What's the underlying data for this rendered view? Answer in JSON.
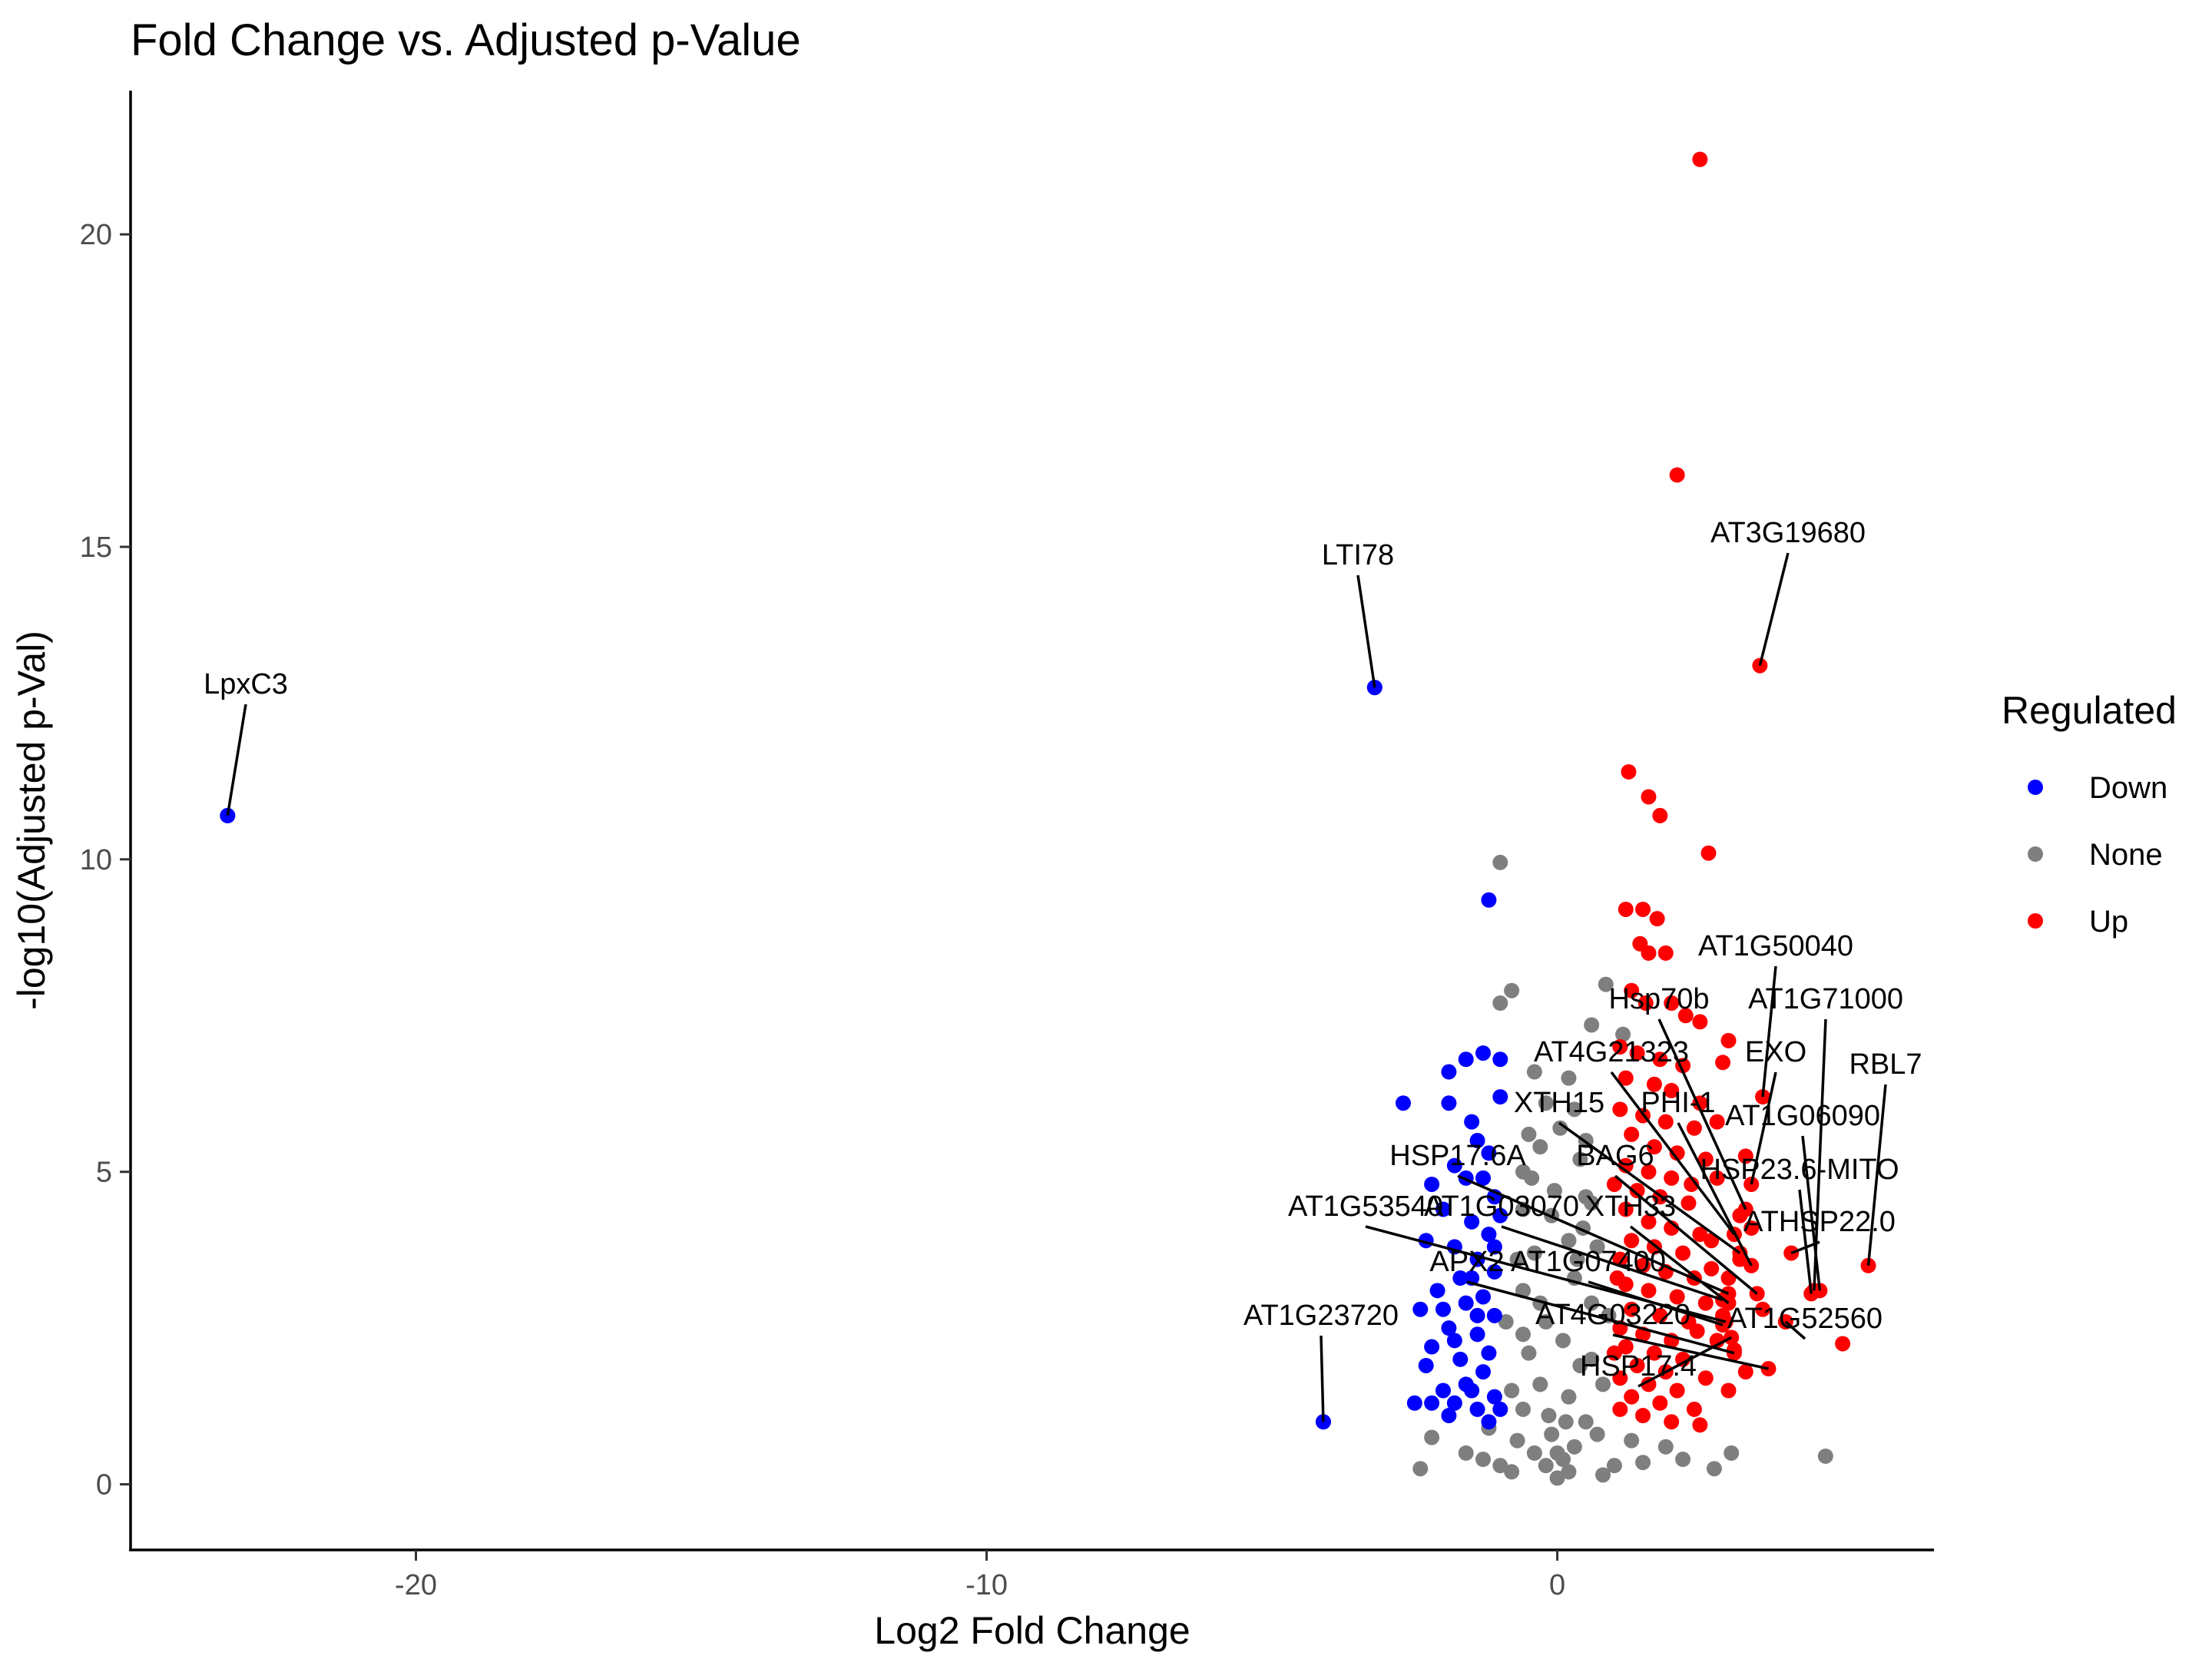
{
  "chart_data": {
    "type": "scatter",
    "title": "Fold Change vs. Adjusted p-Value",
    "xlabel": "Log2 Fold Change",
    "ylabel": "-log10(Adjusted p-Val)",
    "xlim": [
      -25.0,
      6.6
    ],
    "ylim": [
      -1.05,
      22.3
    ],
    "xticks": [
      -20,
      -10,
      0
    ],
    "yticks": [
      0,
      5,
      10,
      15,
      20
    ],
    "grid": false,
    "legend": {
      "title": "Regulated",
      "position": "right",
      "entries": [
        {
          "name": "Down",
          "color": "#0000ff"
        },
        {
          "name": "None",
          "color": "#7f7f7f"
        },
        {
          "name": "Up",
          "color": "#ff0000"
        }
      ]
    },
    "labeled_points": [
      {
        "label": "LpxC3",
        "x": -23.3,
        "y": 10.7,
        "group": "Down"
      },
      {
        "label": "LTI78",
        "x": -3.2,
        "y": 12.75,
        "group": "Down"
      },
      {
        "label": "AT1G23720",
        "x": -4.1,
        "y": 1.0,
        "group": "Down"
      },
      {
        "label": "AT3G19680",
        "x": 3.55,
        "y": 13.1,
        "group": "Up"
      },
      {
        "label": "AT1G50040",
        "x": 3.6,
        "y": 6.2,
        "group": "Up"
      },
      {
        "label": "AT1G71000",
        "x": 4.5,
        "y": 3.1,
        "group": "Up"
      },
      {
        "label": "Hsp70b",
        "x": 3.3,
        "y": 4.4,
        "group": "Up"
      },
      {
        "label": "EXO",
        "x": 3.4,
        "y": 4.8,
        "group": "Up"
      },
      {
        "label": "RBL7",
        "x": 5.45,
        "y": 3.5,
        "group": "Up"
      },
      {
        "label": "AT4G21323",
        "x": 3.1,
        "y": 4.0,
        "group": "Up"
      },
      {
        "label": "AT1G06090",
        "x": 4.6,
        "y": 3.1,
        "group": "Up"
      },
      {
        "label": "XTH15",
        "x": 3.2,
        "y": 3.7,
        "group": "Up"
      },
      {
        "label": "PHI-1",
        "x": 3.4,
        "y": 3.5,
        "group": "Up"
      },
      {
        "label": "HSP17.6A",
        "x": 3.0,
        "y": 3.05,
        "group": "Up"
      },
      {
        "label": "BAG6",
        "x": 3.5,
        "y": 3.05,
        "group": "Up"
      },
      {
        "label": "HSP23.6-MITO",
        "x": 4.45,
        "y": 3.05,
        "group": "Up"
      },
      {
        "label": "AT1G53540",
        "x": 2.95,
        "y": 2.6,
        "group": "Up"
      },
      {
        "label": "AT1G03070",
        "x": 2.9,
        "y": 2.95,
        "group": "Up"
      },
      {
        "label": "XTH33",
        "x": 3.0,
        "y": 2.9,
        "group": "Up"
      },
      {
        "label": "ATHSP22.0",
        "x": 4.1,
        "y": 3.7,
        "group": "Up"
      },
      {
        "label": "APX2",
        "x": 3.1,
        "y": 2.1,
        "group": "Up"
      },
      {
        "label": "AT1G07400",
        "x": 2.9,
        "y": 2.55,
        "group": "Up"
      },
      {
        "label": "AT4G03220",
        "x": 3.7,
        "y": 1.85,
        "group": "Up"
      },
      {
        "label": "AT1G52560",
        "x": 4.0,
        "y": 2.6,
        "group": "Up"
      },
      {
        "label": "HSP17.4",
        "x": 3.05,
        "y": 2.35,
        "group": "Up"
      }
    ],
    "points": {
      "Up": [
        [
          2.5,
          21.2
        ],
        [
          2.1,
          16.15
        ],
        [
          1.25,
          11.4
        ],
        [
          1.6,
          11.0
        ],
        [
          1.8,
          10.7
        ],
        [
          2.65,
          10.1
        ],
        [
          1.2,
          9.2
        ],
        [
          1.5,
          9.2
        ],
        [
          1.75,
          9.05
        ],
        [
          1.45,
          8.65
        ],
        [
          1.9,
          8.5
        ],
        [
          1.6,
          8.5
        ],
        [
          1.3,
          7.9
        ],
        [
          1.55,
          7.7
        ],
        [
          2.0,
          7.7
        ],
        [
          2.25,
          7.5
        ],
        [
          2.5,
          7.4
        ],
        [
          3.0,
          7.1
        ],
        [
          1.1,
          7.0
        ],
        [
          1.4,
          6.9
        ],
        [
          1.8,
          6.8
        ],
        [
          2.2,
          6.7
        ],
        [
          2.9,
          6.75
        ],
        [
          1.2,
          6.5
        ],
        [
          1.7,
          6.4
        ],
        [
          2.0,
          6.3
        ],
        [
          2.5,
          6.1
        ],
        [
          1.1,
          6.0
        ],
        [
          1.5,
          5.9
        ],
        [
          1.9,
          5.8
        ],
        [
          2.4,
          5.7
        ],
        [
          1.3,
          5.6
        ],
        [
          1.7,
          5.4
        ],
        [
          2.1,
          5.3
        ],
        [
          2.6,
          5.2
        ],
        [
          3.3,
          5.25
        ],
        [
          1.2,
          5.1
        ],
        [
          1.6,
          5.0
        ],
        [
          2.0,
          4.9
        ],
        [
          2.8,
          4.9
        ],
        [
          1.4,
          4.7
        ],
        [
          1.8,
          4.6
        ],
        [
          2.3,
          4.5
        ],
        [
          3.2,
          4.3
        ],
        [
          1.2,
          4.4
        ],
        [
          1.6,
          4.2
        ],
        [
          2.0,
          4.1
        ],
        [
          2.5,
          4.0
        ],
        [
          3.4,
          4.1
        ],
        [
          1.3,
          3.9
        ],
        [
          1.7,
          3.8
        ],
        [
          2.2,
          3.7
        ],
        [
          2.7,
          3.9
        ],
        [
          1.1,
          3.6
        ],
        [
          1.5,
          3.5
        ],
        [
          1.9,
          3.4
        ],
        [
          2.4,
          3.3
        ],
        [
          3.0,
          3.3
        ],
        [
          1.2,
          3.2
        ],
        [
          1.6,
          3.1
        ],
        [
          2.1,
          3.0
        ],
        [
          2.6,
          2.9
        ],
        [
          3.6,
          2.8
        ],
        [
          1.3,
          2.8
        ],
        [
          1.8,
          2.7
        ],
        [
          2.3,
          2.6
        ],
        [
          1.1,
          2.5
        ],
        [
          1.5,
          2.4
        ],
        [
          2.0,
          2.3
        ],
        [
          2.8,
          2.3
        ],
        [
          3.1,
          2.15
        ],
        [
          5.0,
          2.25
        ],
        [
          1.2,
          2.2
        ],
        [
          1.7,
          2.1
        ],
        [
          2.2,
          2.0
        ],
        [
          1.4,
          1.9
        ],
        [
          1.9,
          1.8
        ],
        [
          2.6,
          1.7
        ],
        [
          1.1,
          1.7
        ],
        [
          1.6,
          1.6
        ],
        [
          2.1,
          1.5
        ],
        [
          1.3,
          1.4
        ],
        [
          1.8,
          1.3
        ],
        [
          2.4,
          1.2
        ],
        [
          1.1,
          1.2
        ],
        [
          1.5,
          1.1
        ],
        [
          2.0,
          1.0
        ],
        [
          2.5,
          0.95
        ],
        [
          3.0,
          1.5
        ],
        [
          3.3,
          1.8
        ],
        [
          2.9,
          2.7
        ],
        [
          3.2,
          3.6
        ],
        [
          2.7,
          3.45
        ],
        [
          1.0,
          4.8
        ],
        [
          1.05,
          3.3
        ],
        [
          1.0,
          2.1
        ],
        [
          2.8,
          5.8
        ],
        [
          2.35,
          4.8
        ],
        [
          2.45,
          2.45
        ]
      ],
      "Down": [
        [
          -23.3,
          10.7
        ],
        [
          -3.2,
          12.75
        ],
        [
          -4.1,
          1.0
        ],
        [
          -1.2,
          9.35
        ],
        [
          -2.7,
          6.1
        ],
        [
          -1.9,
          6.1
        ],
        [
          -1.6,
          6.8
        ],
        [
          -1.3,
          6.9
        ],
        [
          -1.0,
          6.8
        ],
        [
          -1.9,
          6.6
        ],
        [
          -1.5,
          5.8
        ],
        [
          -1.0,
          6.2
        ],
        [
          -1.4,
          5.5
        ],
        [
          -1.8,
          5.1
        ],
        [
          -1.2,
          5.3
        ],
        [
          -1.6,
          4.9
        ],
        [
          -1.1,
          4.6
        ],
        [
          -2.0,
          4.4
        ],
        [
          -1.5,
          4.2
        ],
        [
          -1.2,
          4.0
        ],
        [
          -1.8,
          3.8
        ],
        [
          -2.3,
          3.9
        ],
        [
          -1.4,
          3.6
        ],
        [
          -1.1,
          3.4
        ],
        [
          -1.7,
          3.3
        ],
        [
          -2.1,
          3.1
        ],
        [
          -1.3,
          3.0
        ],
        [
          -1.6,
          2.9
        ],
        [
          -2.4,
          2.8
        ],
        [
          -1.1,
          2.7
        ],
        [
          -1.9,
          2.5
        ],
        [
          -1.4,
          2.4
        ],
        [
          -2.2,
          2.2
        ],
        [
          -1.2,
          2.1
        ],
        [
          -1.7,
          2.0
        ],
        [
          -2.3,
          1.9
        ],
        [
          -1.3,
          1.8
        ],
        [
          -1.6,
          1.6
        ],
        [
          -2.0,
          1.5
        ],
        [
          -1.1,
          1.4
        ],
        [
          -1.8,
          1.3
        ],
        [
          -2.2,
          1.3
        ],
        [
          -1.4,
          1.2
        ],
        [
          -1.9,
          1.1
        ],
        [
          -1.2,
          1.0
        ],
        [
          -2.5,
          1.3
        ],
        [
          -1.5,
          1.5
        ],
        [
          -1.0,
          1.2
        ],
        [
          -2.0,
          2.8
        ],
        [
          -1.5,
          3.3
        ],
        [
          -1.0,
          4.3
        ],
        [
          -1.3,
          4.9
        ],
        [
          -2.2,
          4.8
        ],
        [
          -1.8,
          2.3
        ],
        [
          -1.4,
          2.7
        ],
        [
          -1.1,
          3.8
        ]
      ],
      "None": [
        [
          -1.0,
          9.95
        ],
        [
          -0.8,
          7.9
        ],
        [
          -1.0,
          7.7
        ],
        [
          0.2,
          6.5
        ],
        [
          0.85,
          8.0
        ],
        [
          -0.4,
          6.6
        ],
        [
          0.6,
          7.35
        ],
        [
          1.15,
          7.2
        ],
        [
          -0.2,
          6.1
        ],
        [
          0.3,
          6.0
        ],
        [
          -0.3,
          5.4
        ],
        [
          0.4,
          5.2
        ],
        [
          -0.6,
          5.0
        ],
        [
          0.5,
          4.6
        ],
        [
          -0.1,
          4.3
        ],
        [
          0.2,
          3.9
        ],
        [
          -0.4,
          3.7
        ],
        [
          0.3,
          3.3
        ],
        [
          -0.6,
          3.1
        ],
        [
          0.6,
          2.9
        ],
        [
          -0.2,
          2.6
        ],
        [
          0.1,
          2.3
        ],
        [
          -0.5,
          2.1
        ],
        [
          0.4,
          1.9
        ],
        [
          -0.3,
          1.6
        ],
        [
          0.2,
          1.4
        ],
        [
          -0.6,
          1.2
        ],
        [
          0.5,
          1.0
        ],
        [
          -0.1,
          0.8
        ],
        [
          0.3,
          0.6
        ],
        [
          -0.4,
          0.5
        ],
        [
          0.1,
          0.4
        ],
        [
          -0.2,
          0.3
        ],
        [
          0.2,
          0.2
        ],
        [
          0.0,
          0.1
        ],
        [
          -0.7,
          0.7
        ],
        [
          0.7,
          0.8
        ],
        [
          -0.8,
          1.5
        ],
        [
          0.8,
          1.6
        ],
        [
          -0.9,
          2.6
        ],
        [
          0.9,
          2.7
        ],
        [
          -0.7,
          3.6
        ],
        [
          0.7,
          3.8
        ],
        [
          -0.6,
          4.4
        ],
        [
          0.6,
          4.5
        ],
        [
          -0.5,
          5.6
        ],
        [
          0.5,
          5.5
        ],
        [
          -2.4,
          0.25
        ],
        [
          -2.2,
          0.75
        ],
        [
          -1.6,
          0.5
        ],
        [
          -1.2,
          0.9
        ],
        [
          1.3,
          0.7
        ],
        [
          1.9,
          0.6
        ],
        [
          2.2,
          0.4
        ],
        [
          2.75,
          0.25
        ],
        [
          3.05,
          0.5
        ],
        [
          4.7,
          0.45
        ],
        [
          -1.0,
          0.3
        ],
        [
          1.0,
          0.3
        ],
        [
          -0.8,
          0.2
        ],
        [
          0.8,
          0.15
        ],
        [
          -1.3,
          0.4
        ],
        [
          1.5,
          0.35
        ],
        [
          -0.3,
          2.9
        ],
        [
          0.35,
          3.6
        ],
        [
          -0.45,
          4.9
        ],
        [
          0.45,
          4.1
        ],
        [
          0.05,
          5.7
        ],
        [
          -0.05,
          4.7
        ],
        [
          0.15,
          1.0
        ],
        [
          -0.15,
          1.1
        ],
        [
          0.6,
          2.0
        ],
        [
          -0.6,
          2.4
        ],
        [
          0.0,
          0.5
        ]
      ]
    }
  }
}
